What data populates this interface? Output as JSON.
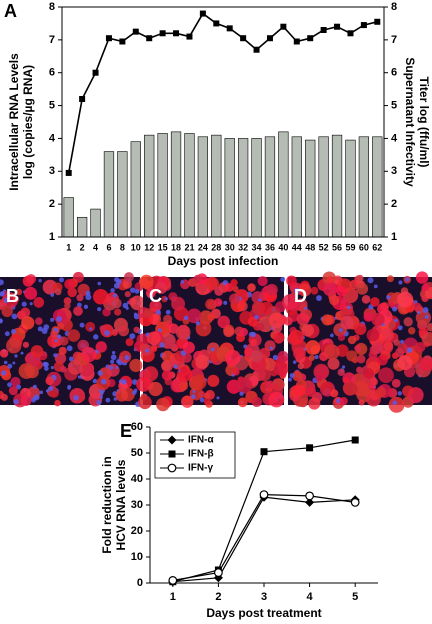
{
  "chart_data": [
    {
      "type": "bar-line",
      "panel_label": "A",
      "xlabel": "Days post infection",
      "ylabel": [
        "Intracellular RNA Levels",
        "log (copies/µg RNA)"
      ],
      "y2label": [
        "Supernatant Infectivity",
        "Titer log (ffu/ml)"
      ],
      "categories": [
        "1",
        "2",
        "4",
        "6",
        "8",
        "10",
        "12",
        "15",
        "18",
        "21",
        "24",
        "28",
        "30",
        "32",
        "34",
        "36",
        "40",
        "44",
        "48",
        "52",
        "56",
        "59",
        "60",
        "62"
      ],
      "ylim": [
        1,
        8
      ],
      "yticks": [
        1,
        2,
        3,
        4,
        5,
        6,
        7,
        8
      ],
      "y2lim": [
        1,
        8
      ],
      "y2ticks": [
        1,
        2,
        3,
        4,
        5,
        6,
        7,
        8
      ],
      "series": [
        {
          "type": "line",
          "color": "#000000",
          "values": [
            2.95,
            5.2,
            6.0,
            7.05,
            6.95,
            7.25,
            7.05,
            7.2,
            7.2,
            7.1,
            7.8,
            7.5,
            7.35,
            7.05,
            6.7,
            7.05,
            7.4,
            6.95,
            7.05,
            7.3,
            7.4,
            7.2,
            7.45,
            7.55
          ]
        },
        {
          "type": "bar",
          "axis": "y2",
          "color": "#b4bcb4",
          "values": [
            2.2,
            1.6,
            1.85,
            3.6,
            3.6,
            3.9,
            4.1,
            4.15,
            4.2,
            4.15,
            4.05,
            4.1,
            4.0,
            4.0,
            4.0,
            4.05,
            4.2,
            4.05,
            3.95,
            4.05,
            4.1,
            3.95,
            4.05,
            4.05
          ]
        }
      ]
    },
    {
      "type": "line",
      "panel_label": "E",
      "xlabel": "Days post treatment",
      "ylabel": [
        "Fold reduction in",
        "HCV RNA levels"
      ],
      "x": [
        1,
        2,
        3,
        4,
        5
      ],
      "xlim": [
        0.5,
        5.5
      ],
      "xticks": [
        1,
        2,
        3,
        4,
        5
      ],
      "ylim": [
        0,
        60
      ],
      "yticks": [
        0,
        10,
        20,
        30,
        40,
        50,
        60
      ],
      "series": [
        {
          "name": "IFN-α",
          "marker": "diamond",
          "color": "#000000",
          "values": [
            0.5,
            2,
            33,
            31,
            32
          ]
        },
        {
          "name": "IFN-β",
          "marker": "square",
          "color": "#000000",
          "values": [
            0.5,
            5,
            50.5,
            52,
            55
          ]
        },
        {
          "name": "IFN-γ",
          "marker": "open-circle",
          "color": "#000000",
          "values": [
            1,
            4,
            34,
            33.5,
            31
          ]
        }
      ]
    }
  ],
  "images": [
    {
      "label": "B"
    },
    {
      "label": "C"
    },
    {
      "label": "D"
    }
  ]
}
